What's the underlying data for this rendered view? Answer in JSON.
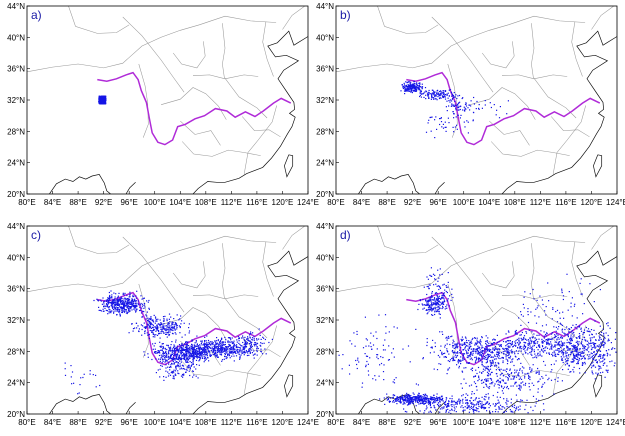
{
  "panels": [
    {
      "label": "a)",
      "stage": 0
    },
    {
      "label": "b)",
      "stage": 1
    },
    {
      "label": "c)",
      "stage": 2
    },
    {
      "label": "d)",
      "stage": 3
    }
  ],
  "lat_ticks": [
    "20°N",
    "24°N",
    "28°N",
    "32°N",
    "36°N",
    "40°N",
    "44°N"
  ],
  "lon_ticks": [
    "80°E",
    "84°E",
    "88°E",
    "92°E",
    "96°E",
    "100°E",
    "104°E",
    "108°E",
    "112°E",
    "116°E",
    "120°E",
    "124°E"
  ],
  "extent": {
    "lon": [
      80,
      124
    ],
    "lat": [
      20,
      44
    ]
  },
  "colors": {
    "particles": "#1515e6",
    "river": "#b02bd8",
    "borders": "#9a9a9a",
    "coast": "#111111",
    "label": "#1a1aa6"
  },
  "river_path": [
    [
      91.0,
      34.6
    ],
    [
      92.5,
      34.4
    ],
    [
      94.0,
      34.7
    ],
    [
      95.5,
      35.2
    ],
    [
      96.6,
      35.5
    ],
    [
      97.4,
      34.6
    ],
    [
      97.9,
      33.2
    ],
    [
      98.7,
      31.7
    ],
    [
      99.2,
      29.5
    ],
    [
      99.6,
      27.8
    ],
    [
      100.5,
      26.6
    ],
    [
      101.6,
      26.3
    ],
    [
      102.8,
      26.9
    ],
    [
      103.6,
      28.6
    ],
    [
      104.8,
      28.9
    ],
    [
      106.3,
      29.6
    ],
    [
      107.8,
      30.0
    ],
    [
      109.5,
      30.9
    ],
    [
      111.3,
      30.6
    ],
    [
      112.6,
      29.8
    ],
    [
      114.2,
      30.5
    ],
    [
      115.7,
      29.9
    ],
    [
      117.0,
      30.6
    ],
    [
      118.6,
      31.6
    ],
    [
      119.8,
      32.2
    ],
    [
      121.3,
      31.6
    ]
  ]
}
